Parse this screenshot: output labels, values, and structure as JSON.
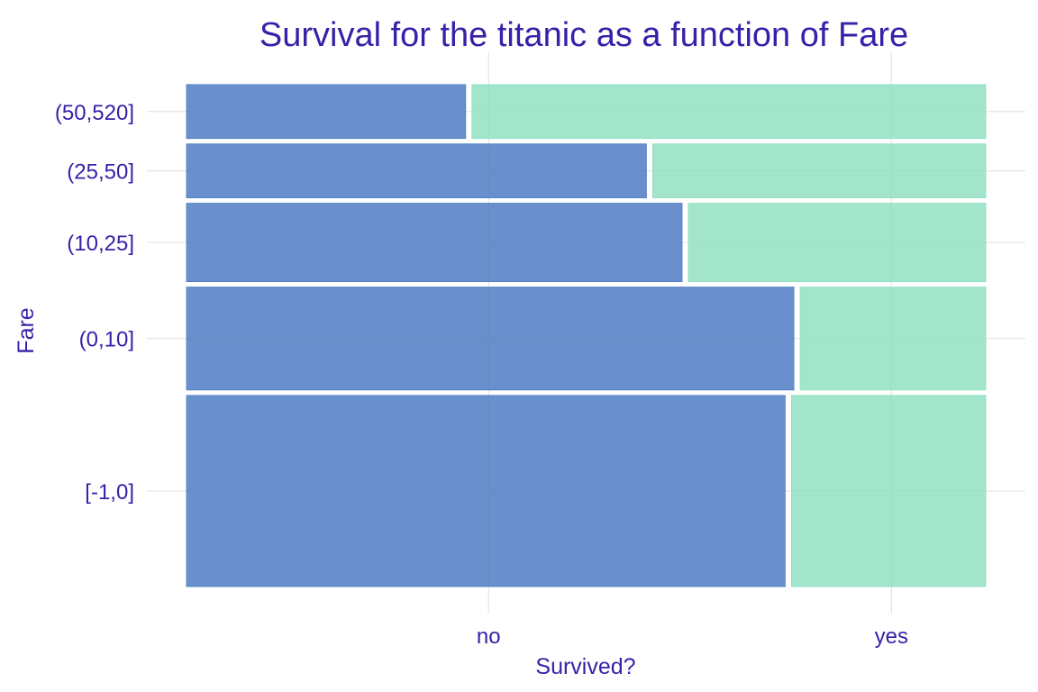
{
  "chart_data": {
    "type": "mosaic",
    "title": "Survival for the titanic as a function of Fare",
    "xlabel": "Survived?",
    "ylabel": "Fare",
    "x_categories": [
      "no",
      "yes"
    ],
    "y_categories": [
      "[-1,0]",
      "(0,10]",
      "(10,25]",
      "(25,50]",
      "(50,520]"
    ],
    "group_shares": [
      0.39,
      0.21,
      0.16,
      0.11,
      0.11
    ],
    "series": [
      {
        "name": "no",
        "values": [
          0.755,
          0.766,
          0.625,
          0.58,
          0.352
        ],
        "color": "#4c7bc2"
      },
      {
        "name": "yes",
        "values": [
          0.245,
          0.234,
          0.375,
          0.42,
          0.648
        ],
        "color": "#8ddfbf"
      }
    ],
    "x_tick_positions": [
      0.378,
      0.882
    ],
    "grid": true,
    "text_color": "#3a1fa8",
    "grid_color": "#e4e4e4"
  }
}
